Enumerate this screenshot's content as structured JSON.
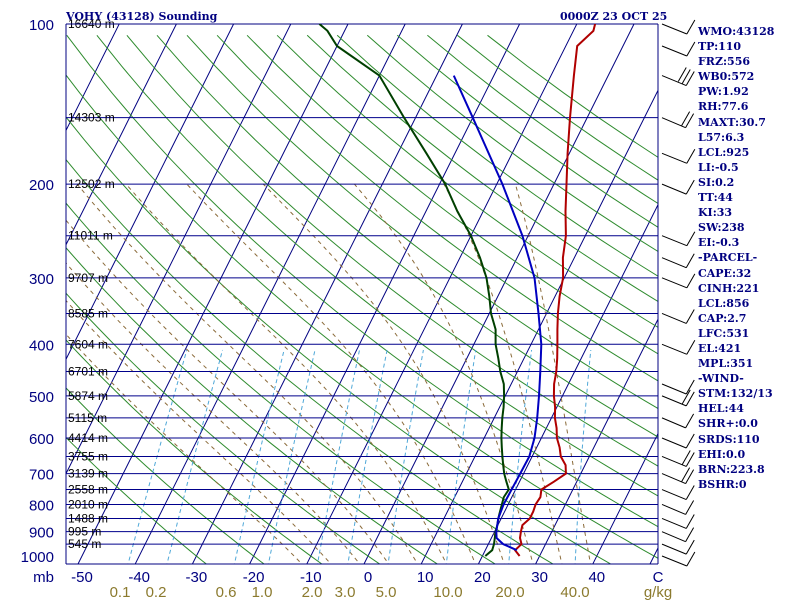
{
  "header": {
    "station": "VOHY (43128) Sounding",
    "datetime": "0000Z 23 OCT 25"
  },
  "indices": [
    "WMO:43128",
    "TP:110",
    "FRZ:556",
    "WB0:572",
    "PW:1.92",
    "RH:77.6",
    "MAXT:30.7",
    "L57:6.3",
    "LCL:925",
    "LI:-0.5",
    "SI:0.2",
    "TT:44",
    "KI:33",
    "SW:238",
    "EI:-0.3",
    "-PARCEL-",
    "CAPE:32",
    "CINH:221",
    "LCL:856",
    "CAP:2.7",
    "LFC:531",
    "EL:421",
    "MPL:351",
    "-WIND-",
    "STM:132/13",
    "HEL:44",
    "SHR+:0.0",
    "SRDS:110",
    "EHI:0.0",
    "BRN:223.8",
    "BSHR:0"
  ],
  "colors": {
    "isobar": "#00008b",
    "axis": "#000080",
    "isotherm": "#000080",
    "dry_adiabat": "#2e8b2e",
    "mixing_ratio": "#4fa8d8",
    "moist_adiabat": "#8b6b3a",
    "temperature": "#b00000",
    "dewpoint": "#004000",
    "parcel": "#0000c0"
  },
  "chart_data": {
    "type": "line",
    "title": "VOHY (43128) Sounding 0000Z 23 OCT 25",
    "xlabel": "C",
    "ylabel": "mb",
    "xunit_mixing_ratio": "g/kg",
    "pressure_ticks": [
      {
        "label": "100",
        "p": 100
      },
      {
        "label": "200",
        "p": 200
      },
      {
        "label": "300",
        "p": 300
      },
      {
        "label": "400",
        "p": 400
      },
      {
        "label": "500",
        "p": 500
      },
      {
        "label": "600",
        "p": 600
      },
      {
        "label": "700",
        "p": 700
      },
      {
        "label": "800",
        "p": 800
      },
      {
        "label": "900",
        "p": 900
      },
      {
        "label": "1000",
        "p": 1000
      },
      {
        "label": "mb",
        "p": 1100
      }
    ],
    "height_labels": [
      {
        "p": 100,
        "text": "16640 m"
      },
      {
        "p": 150,
        "text": "14303 m"
      },
      {
        "p": 200,
        "text": "12502 m"
      },
      {
        "p": 250,
        "text": "11011 m"
      },
      {
        "p": 300,
        "text": "9707 m"
      },
      {
        "p": 350,
        "text": "8585 m"
      },
      {
        "p": 400,
        "text": "7604 m"
      },
      {
        "p": 450,
        "text": "6701 m"
      },
      {
        "p": 500,
        "text": "5874 m"
      },
      {
        "p": 550,
        "text": "5115 m"
      },
      {
        "p": 600,
        "text": "4414 m"
      },
      {
        "p": 650,
        "text": "3755 m"
      },
      {
        "p": 700,
        "text": "3139 m"
      },
      {
        "p": 750,
        "text": "2558 m"
      },
      {
        "p": 800,
        "text": "2010 m"
      },
      {
        "p": 850,
        "text": "1488 m"
      },
      {
        "p": 900,
        "text": "995 m"
      },
      {
        "p": 950,
        "text": "545 m"
      }
    ],
    "temp_ticks": [
      "-50",
      "-40",
      "-30",
      "-20",
      "-10",
      "0",
      "10",
      "20",
      "30",
      "40",
      "C"
    ],
    "mixing_ratio_ticks": [
      "0.1",
      "0.2",
      "0.6",
      "1.0",
      "2.0",
      "3.0",
      "5.0",
      "10.0",
      "20.0",
      "40.0",
      "g/kg"
    ],
    "ylim": [
      100,
      1050
    ],
    "xlim": [
      -50,
      50
    ],
    "series": [
      {
        "name": "temperature",
        "points": [
          [
            1000,
            26.5
          ],
          [
            975,
            25.2
          ],
          [
            950,
            25.8
          ],
          [
            925,
            25.0
          ],
          [
            900,
            24.6
          ],
          [
            875,
            24.3
          ],
          [
            850,
            25.0
          ],
          [
            825,
            25.0
          ],
          [
            800,
            24.8
          ],
          [
            775,
            25.0
          ],
          [
            750,
            24.5
          ],
          [
            725,
            26.0
          ],
          [
            700,
            27.4
          ],
          [
            675,
            26.6
          ],
          [
            650,
            25.0
          ],
          [
            625,
            24.0
          ],
          [
            600,
            22.7
          ],
          [
            575,
            21.8
          ],
          [
            550,
            20.6
          ],
          [
            525,
            19.7
          ],
          [
            500,
            18.5
          ],
          [
            475,
            17.5
          ],
          [
            450,
            16.8
          ],
          [
            425,
            15.8
          ],
          [
            400,
            14.6
          ],
          [
            375,
            13.3
          ],
          [
            350,
            12.0
          ],
          [
            325,
            10.8
          ],
          [
            300,
            9.8
          ],
          [
            275,
            8.0
          ],
          [
            250,
            6.6
          ],
          [
            225,
            4.4
          ],
          [
            200,
            2.2
          ],
          [
            175,
            -0.3
          ],
          [
            150,
            -3.0
          ],
          [
            125,
            -6.0
          ],
          [
            110,
            -8.0
          ],
          [
            103,
            -6.5
          ],
          [
            100,
            -6.8
          ]
        ]
      },
      {
        "name": "dewpoint",
        "points": [
          [
            1000,
            20.5
          ],
          [
            975,
            21.2
          ],
          [
            950,
            21.0
          ],
          [
            925,
            20.6
          ],
          [
            900,
            20.2
          ],
          [
            875,
            19.9
          ],
          [
            850,
            19.5
          ],
          [
            825,
            19.2
          ],
          [
            800,
            18.9
          ],
          [
            775,
            18.6
          ],
          [
            750,
            18.8
          ],
          [
            725,
            17.7
          ],
          [
            700,
            16.6
          ],
          [
            675,
            15.7
          ],
          [
            650,
            14.8
          ],
          [
            625,
            13.9
          ],
          [
            600,
            13.0
          ],
          [
            575,
            12.2
          ],
          [
            550,
            11.4
          ],
          [
            525,
            10.7
          ],
          [
            500,
            9.8
          ],
          [
            475,
            8.7
          ],
          [
            450,
            7.0
          ],
          [
            425,
            5.5
          ],
          [
            400,
            3.8
          ],
          [
            375,
            2.5
          ],
          [
            350,
            0.3
          ],
          [
            325,
            -1.5
          ],
          [
            300,
            -3.6
          ],
          [
            275,
            -6.5
          ],
          [
            250,
            -10.0
          ],
          [
            225,
            -14.5
          ],
          [
            200,
            -19.0
          ],
          [
            175,
            -25.0
          ],
          [
            150,
            -32.0
          ],
          [
            125,
            -40.0
          ],
          [
            110,
            -50.0
          ],
          [
            103,
            -53.0
          ],
          [
            100,
            -55.0
          ]
        ]
      },
      {
        "name": "parcel",
        "points": [
          [
            975,
            25.5
          ],
          [
            950,
            22.6
          ],
          [
            925,
            20.9
          ],
          [
            900,
            20.3
          ],
          [
            850,
            19.5
          ],
          [
            800,
            19.2
          ],
          [
            750,
            19.3
          ],
          [
            700,
            19.4
          ],
          [
            650,
            19.5
          ],
          [
            600,
            18.8
          ],
          [
            550,
            17.5
          ],
          [
            500,
            15.9
          ],
          [
            450,
            14.0
          ],
          [
            400,
            11.8
          ],
          [
            350,
            8.6
          ],
          [
            300,
            4.8
          ],
          [
            250,
            -1.0
          ],
          [
            200,
            -9.0
          ],
          [
            150,
            -20.0
          ],
          [
            125,
            -27.0
          ]
        ]
      }
    ],
    "wind_barbs": [
      {
        "p": 100,
        "dir": 290,
        "spd": 10
      },
      {
        "p": 110,
        "dir": 290,
        "spd": 10
      },
      {
        "p": 125,
        "dir": 300,
        "spd": 25
      },
      {
        "p": 150,
        "dir": 310,
        "spd": 15
      },
      {
        "p": 175,
        "dir": 290,
        "spd": 10
      },
      {
        "p": 200,
        "dir": 300,
        "spd": 10
      },
      {
        "p": 250,
        "dir": 290,
        "spd": 10
      },
      {
        "p": 275,
        "dir": 300,
        "spd": 10
      },
      {
        "p": 300,
        "dir": 290,
        "spd": 10
      },
      {
        "p": 350,
        "dir": 300,
        "spd": 10
      },
      {
        "p": 400,
        "dir": 290,
        "spd": 10
      },
      {
        "p": 475,
        "dir": 300,
        "spd": 10
      },
      {
        "p": 500,
        "dir": 300,
        "spd": 15
      },
      {
        "p": 550,
        "dir": 310,
        "spd": 10
      },
      {
        "p": 600,
        "dir": 300,
        "spd": 10
      },
      {
        "p": 650,
        "dir": 300,
        "spd": 15
      },
      {
        "p": 700,
        "dir": 310,
        "spd": 15
      },
      {
        "p": 750,
        "dir": 300,
        "spd": 10
      },
      {
        "p": 800,
        "dir": 310,
        "spd": 10
      },
      {
        "p": 850,
        "dir": 300,
        "spd": 10
      },
      {
        "p": 900,
        "dir": 310,
        "spd": 10
      },
      {
        "p": 950,
        "dir": 300,
        "spd": 10
      },
      {
        "p": 1000,
        "dir": 290,
        "spd": 5
      }
    ]
  }
}
